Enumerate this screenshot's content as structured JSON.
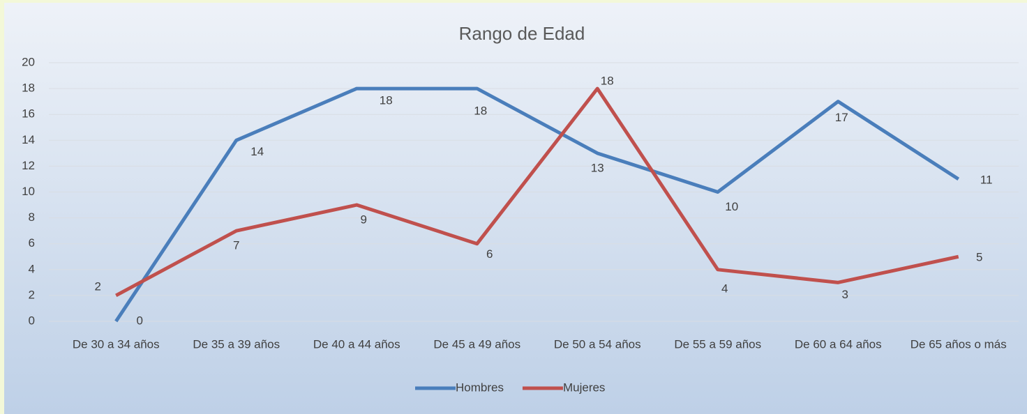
{
  "chart_data": {
    "type": "line",
    "title": "Rango de Edad",
    "categories": [
      "De 30 a 34 años",
      "De 35 a 39 años",
      "De 40 a 44 años",
      "De 45 a 49 años",
      "De 50 a 54 años",
      "De 55 a 59 años",
      "De 60 a 64 años",
      "De 65 años o más"
    ],
    "series": [
      {
        "name": "Hombres",
        "color": "#4a7ebb",
        "values": [
          0,
          14,
          18,
          18,
          13,
          10,
          17,
          11
        ]
      },
      {
        "name": "Mujeres",
        "color": "#c0504d",
        "values": [
          2,
          7,
          9,
          6,
          18,
          4,
          3,
          5
        ]
      }
    ],
    "ylim": [
      0,
      20
    ],
    "yticks": [
      0,
      2,
      4,
      6,
      8,
      10,
      12,
      14,
      16,
      18,
      20
    ],
    "grid": true,
    "legend": "bottom",
    "data_labels": true
  }
}
